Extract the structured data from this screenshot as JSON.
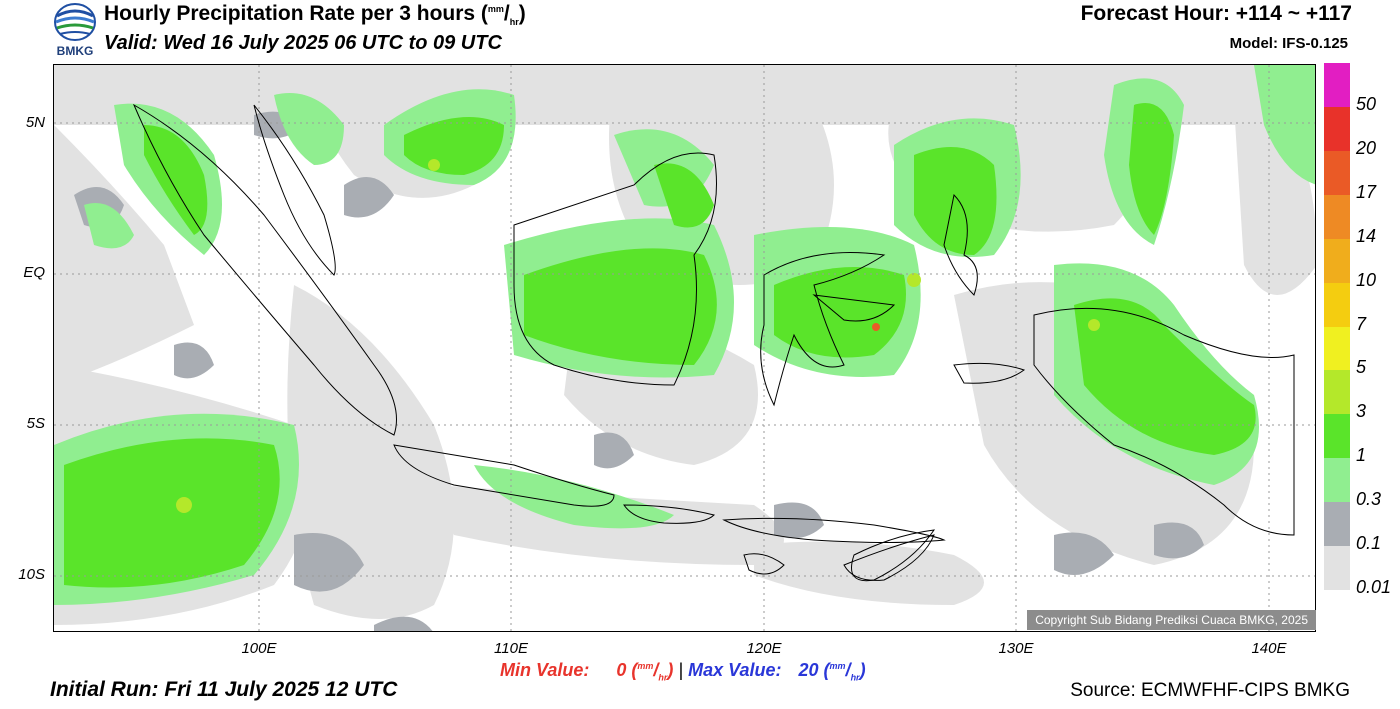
{
  "header": {
    "title_main": "Hourly Precipitation Rate per 3 hours (",
    "title_unit_num": "mm",
    "title_unit_den": "hr",
    "title_close": ")",
    "valid": "Valid: Wed 16 July 2025 06 UTC to 09 UTC",
    "forecast_hour": "Forecast Hour: +114 ~ +117",
    "model": "Model: IFS-0.125"
  },
  "logo": {
    "text": "BMKG",
    "icon": "bmkg-logo-icon"
  },
  "axes": {
    "lat_labels": [
      "5N",
      "EQ",
      "5S",
      "10S"
    ],
    "lon_labels": [
      "100E",
      "110E",
      "120E",
      "130E",
      "140E"
    ]
  },
  "colorbar": {
    "levels": [
      "50",
      "20",
      "17",
      "14",
      "10",
      "7",
      "5",
      "3",
      "1",
      "0.3",
      "0.1",
      "0.01"
    ],
    "colors": [
      "#e21ec2",
      "#e8322a",
      "#ea5a26",
      "#ee8a24",
      "#f0ad1c",
      "#f4cd10",
      "#f0f020",
      "#b4e82a",
      "#5ae42a",
      "#90ee90",
      "#a9adb3",
      "#e2e2e2"
    ]
  },
  "footer": {
    "min_label": "Min Value:",
    "min_value": "0",
    "max_label": "Max Value:",
    "max_value": "20",
    "unit_num": "mm",
    "unit_den": "hr",
    "separator": "|",
    "initial_run": "Initial Run: Fri 11 July 2025 12 UTC",
    "source": "Source: ECMWFHF-CIPS BMKG",
    "copyright": "Copyright Sub Bidang Prediksi Cuaca BMKG, 2025"
  }
}
